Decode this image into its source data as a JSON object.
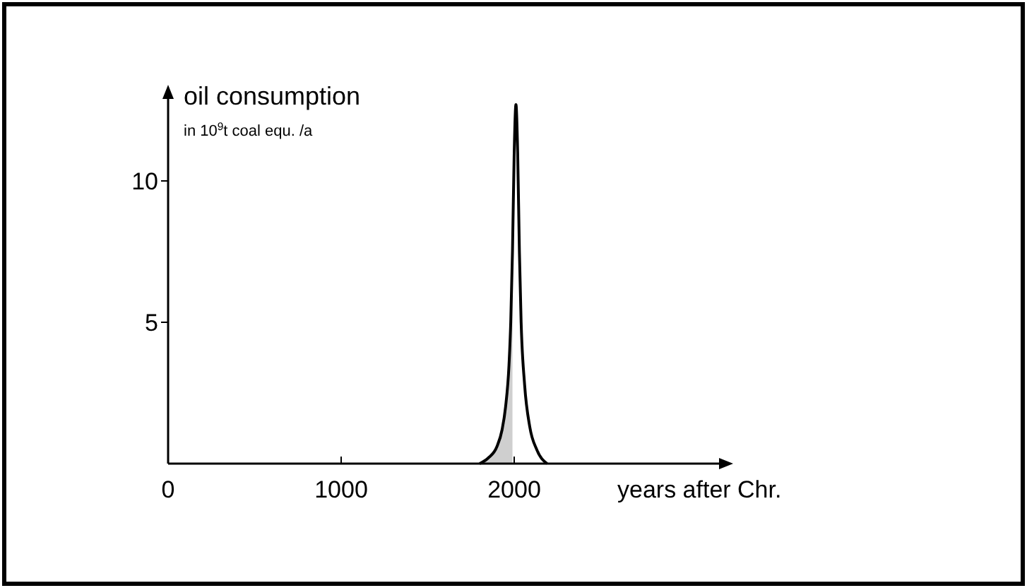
{
  "chart_data": {
    "type": "line",
    "xlabel": "years after Chr.",
    "ylabel": "oil consumption",
    "annotations": [
      "in 10$^{9}$t coal equ. /a"
    ],
    "xlim": [
      0,
      3200
    ],
    "ylim": [
      0,
      13
    ],
    "xticks": [
      0,
      1000,
      2000
    ],
    "yticks": [
      5,
      10
    ],
    "grid": false,
    "marker": "none",
    "line_style": "solid",
    "series": [
      {
        "type": "area",
        "color": "#cfcfcf",
        "x": [
          1800,
          1850,
          1900,
          1930,
          1950,
          1970,
          1980,
          1990
        ],
        "values": [
          0,
          0.2,
          0.6,
          1.2,
          2,
          3.5,
          5,
          7.5
        ]
      },
      {
        "color": "#000000",
        "x": [
          1800,
          1850,
          1900,
          1930,
          1950,
          1970,
          1980,
          1990,
          2000,
          2010,
          2020,
          2030,
          2040,
          2060,
          2090,
          2130,
          2190
        ],
        "values": [
          0,
          0.2,
          0.6,
          1.2,
          2,
          3.5,
          5,
          7.5,
          11,
          12.7,
          11,
          7.5,
          5,
          2.8,
          1.3,
          0.5,
          0
        ]
      }
    ]
  }
}
